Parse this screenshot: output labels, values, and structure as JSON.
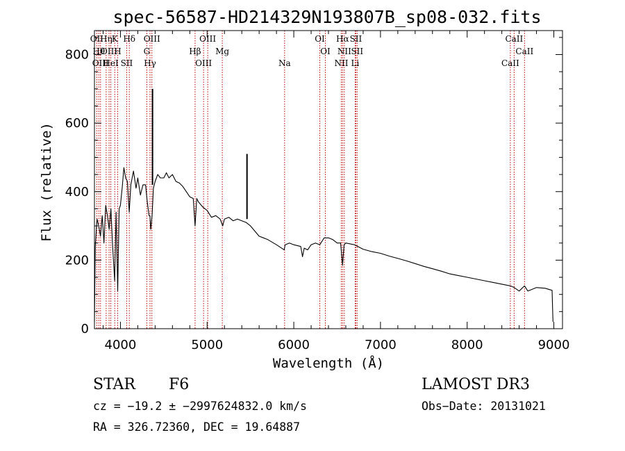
{
  "chart_data": {
    "type": "line",
    "title": "spec-56587-HD214329N193807B_sp08-032.fits",
    "xlabel": "Wavelength (Å)",
    "ylabel": "Flux (relative)",
    "xlim": [
      3700,
      9100
    ],
    "ylim": [
      0,
      870
    ],
    "xticks": [
      4000,
      5000,
      6000,
      7000,
      8000,
      9000
    ],
    "yticks": [
      0,
      200,
      400,
      600,
      800
    ],
    "series": [
      {
        "name": "flux",
        "x": [
          3700,
          3710,
          3730,
          3750,
          3770,
          3790,
          3810,
          3830,
          3850,
          3870,
          3890,
          3910,
          3933,
          3950,
          3968,
          3985,
          4000,
          4020,
          4040,
          4060,
          4080,
          4101,
          4120,
          4150,
          4180,
          4200,
          4230,
          4260,
          4290,
          4310,
          4330,
          4340,
          4350,
          4365,
          4380,
          4400,
          4430,
          4460,
          4500,
          4530,
          4560,
          4600,
          4640,
          4680,
          4720,
          4760,
          4800,
          4840,
          4861,
          4880,
          4900,
          4950,
          5000,
          5050,
          5100,
          5150,
          5180,
          5200,
          5250,
          5300,
          5350,
          5400,
          5450,
          5500,
          5550,
          5600,
          5650,
          5700,
          5800,
          5890,
          5900,
          5950,
          6000,
          6080,
          6100,
          6120,
          6160,
          6200,
          6250,
          6300,
          6350,
          6400,
          6450,
          6500,
          6540,
          6563,
          6580,
          6600,
          6700,
          6800,
          6900,
          7000,
          7100,
          7200,
          7300,
          7400,
          7500,
          7600,
          7700,
          7800,
          7900,
          8000,
          8100,
          8200,
          8300,
          8400,
          8500,
          8542,
          8600,
          8662,
          8700,
          8800,
          8900,
          8980,
          8990
        ],
        "y": [
          20,
          240,
          320,
          300,
          270,
          330,
          250,
          360,
          330,
          290,
          350,
          240,
          140,
          340,
          110,
          350,
          360,
          410,
          470,
          440,
          430,
          340,
          420,
          460,
          410,
          440,
          390,
          420,
          420,
          370,
          330,
          330,
          290,
          330,
          410,
          430,
          450,
          440,
          440,
          455,
          440,
          450,
          430,
          425,
          415,
          400,
          385,
          380,
          300,
          380,
          370,
          355,
          345,
          325,
          330,
          320,
          300,
          320,
          325,
          315,
          320,
          315,
          310,
          300,
          285,
          270,
          265,
          260,
          245,
          230,
          245,
          250,
          245,
          240,
          210,
          235,
          230,
          245,
          250,
          245,
          265,
          265,
          260,
          250,
          250,
          185,
          245,
          250,
          245,
          232,
          225,
          220,
          212,
          205,
          198,
          190,
          182,
          175,
          168,
          160,
          155,
          150,
          145,
          140,
          135,
          130,
          125,
          120,
          110,
          125,
          110,
          120,
          118,
          112,
          20
        ],
        "spikes": [
          {
            "x": 4370,
            "base": 420,
            "top": 700
          },
          {
            "x": 5460,
            "base": 320,
            "top": 510
          }
        ]
      }
    ],
    "lines": [
      {
        "x": 3727,
        "label": "OII"
      },
      {
        "x": 3750,
        "label": "Hθ"
      },
      {
        "x": 3770,
        "label": "OIII"
      },
      {
        "x": 3835,
        "label": "Hη"
      },
      {
        "x": 3869,
        "label": "OIII"
      },
      {
        "x": 3889,
        "label": "HeI"
      },
      {
        "x": 3934,
        "label": "K"
      },
      {
        "x": 3968,
        "label": "H"
      },
      {
        "x": 4072,
        "label": "SII"
      },
      {
        "x": 4102,
        "label": "Hδ"
      },
      {
        "x": 4304,
        "label": "G"
      },
      {
        "x": 4341,
        "label": "Hγ"
      },
      {
        "x": 4363,
        "label": "OIII"
      },
      {
        "x": 4861,
        "label": "Hβ"
      },
      {
        "x": 4959,
        "label": "OIII"
      },
      {
        "x": 5007,
        "label": "OIII"
      },
      {
        "x": 5175,
        "label": "Mg"
      },
      {
        "x": 5894,
        "label": "Na"
      },
      {
        "x": 6300,
        "label": "OI"
      },
      {
        "x": 6364,
        "label": "OI"
      },
      {
        "x": 6548,
        "label": "NII"
      },
      {
        "x": 6563,
        "label": "Hα"
      },
      {
        "x": 6583,
        "label": "NII"
      },
      {
        "x": 6708,
        "label": "Li"
      },
      {
        "x": 6716,
        "label": "SII"
      },
      {
        "x": 6731,
        "label": "SII"
      },
      {
        "x": 8498,
        "label": "CaII"
      },
      {
        "x": 8542,
        "label": "CaII"
      },
      {
        "x": 8662,
        "label": "CaII"
      }
    ]
  },
  "footer": {
    "class_label": "STAR",
    "subclass": "F6",
    "survey": "LAMOST DR3",
    "cz": "cz = −19.2 ± −2997624832.0 km/s",
    "obs_date": "Obs−Date: 20131021",
    "radec": "RA = 326.72360, DEC =  19.64887"
  },
  "colors": {
    "axis": "#000000",
    "line_marker": "#c00000",
    "spectrum": "#000000"
  }
}
